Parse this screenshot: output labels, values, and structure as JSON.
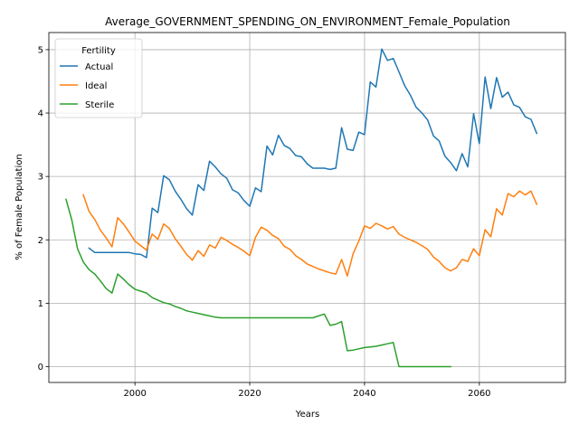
{
  "chart_data": {
    "type": "line",
    "title": "Average_GOVERNMENT_SPENDING_ON_ENVIRONMENT_Female_Population",
    "xlabel": "Years",
    "ylabel": "% of Female Population",
    "xlim": [
      1985,
      2075
    ],
    "ylim": [
      -0.25,
      5.27
    ],
    "xticks": [
      2000,
      2020,
      2040,
      2060
    ],
    "yticks": [
      0,
      1,
      2,
      3,
      4,
      5
    ],
    "grid": true,
    "legend": {
      "title": "Fertility",
      "placement": "upper-left"
    },
    "series": [
      {
        "name": "Actual",
        "color": "#1f77b4",
        "x": [
          1992,
          1993,
          1994,
          1995,
          1996,
          1997,
          1998,
          1999,
          2000,
          2001,
          2002,
          2003,
          2004,
          2005,
          2006,
          2007,
          2008,
          2009,
          2010,
          2011,
          2012,
          2013,
          2014,
          2015,
          2016,
          2017,
          2018,
          2019,
          2020,
          2021,
          2022,
          2023,
          2024,
          2025,
          2026,
          2027,
          2028,
          2029,
          2030,
          2031,
          2032,
          2033,
          2034,
          2035,
          2036,
          2037,
          2038,
          2039,
          2040,
          2041,
          2042,
          2043,
          2044,
          2045,
          2046,
          2047,
          2048,
          2049,
          2050,
          2051,
          2052,
          2053,
          2054,
          2055,
          2056,
          2057,
          2058,
          2059,
          2060,
          2061,
          2062,
          2063,
          2064,
          2065,
          2066,
          2067,
          2068,
          2069,
          2070
        ],
        "y": [
          1.87,
          1.8,
          1.8,
          1.8,
          1.8,
          1.8,
          1.8,
          1.8,
          1.78,
          1.77,
          1.72,
          2.5,
          2.43,
          3.01,
          2.95,
          2.77,
          2.64,
          2.49,
          2.39,
          2.87,
          2.78,
          3.24,
          3.15,
          3.04,
          2.97,
          2.79,
          2.74,
          2.62,
          2.53,
          2.82,
          2.76,
          3.48,
          3.34,
          3.65,
          3.49,
          3.44,
          3.33,
          3.31,
          3.2,
          3.13,
          3.13,
          3.13,
          3.11,
          3.13,
          3.77,
          3.43,
          3.41,
          3.7,
          3.66,
          4.49,
          4.41,
          5.01,
          4.83,
          4.86,
          4.65,
          4.43,
          4.28,
          4.09,
          4.0,
          3.89,
          3.64,
          3.56,
          3.32,
          3.22,
          3.09,
          3.36,
          3.15,
          3.99,
          3.52,
          4.57,
          4.07,
          4.56,
          4.25,
          4.33,
          4.13,
          4.09,
          3.94,
          3.9,
          3.68
        ]
      },
      {
        "name": "Ideal",
        "color": "#ff7f0e",
        "x": [
          1991,
          1992,
          1993,
          1994,
          1995,
          1996,
          1997,
          1998,
          1999,
          2000,
          2001,
          2002,
          2003,
          2004,
          2005,
          2006,
          2007,
          2008,
          2009,
          2010,
          2011,
          2012,
          2013,
          2014,
          2015,
          2016,
          2017,
          2018,
          2019,
          2020,
          2021,
          2022,
          2023,
          2024,
          2025,
          2026,
          2027,
          2028,
          2029,
          2030,
          2031,
          2032,
          2033,
          2034,
          2035,
          2036,
          2037,
          2038,
          2039,
          2040,
          2041,
          2042,
          2043,
          2044,
          2045,
          2046,
          2047,
          2048,
          2049,
          2050,
          2051,
          2052,
          2053,
          2054,
          2055,
          2056,
          2057,
          2058,
          2059,
          2060,
          2061,
          2062,
          2063,
          2064,
          2065,
          2066,
          2067,
          2068,
          2069,
          2070
        ],
        "y": [
          2.71,
          2.45,
          2.32,
          2.15,
          2.03,
          1.89,
          2.35,
          2.25,
          2.12,
          1.98,
          1.91,
          1.84,
          2.09,
          2.01,
          2.25,
          2.18,
          2.02,
          1.9,
          1.77,
          1.68,
          1.83,
          1.74,
          1.92,
          1.87,
          2.04,
          1.99,
          1.93,
          1.88,
          1.82,
          1.75,
          2.04,
          2.2,
          2.15,
          2.07,
          2.02,
          1.9,
          1.85,
          1.75,
          1.69,
          1.62,
          1.58,
          1.54,
          1.51,
          1.48,
          1.46,
          1.69,
          1.43,
          1.78,
          1.98,
          2.22,
          2.18,
          2.26,
          2.22,
          2.17,
          2.21,
          2.09,
          2.04,
          2.0,
          1.96,
          1.91,
          1.85,
          1.73,
          1.66,
          1.56,
          1.51,
          1.56,
          1.69,
          1.66,
          1.86,
          1.75,
          2.16,
          2.05,
          2.49,
          2.39,
          2.73,
          2.68,
          2.77,
          2.71,
          2.77,
          2.56
        ]
      },
      {
        "name": "Sterile",
        "color": "#2ca02c",
        "x": [
          1988,
          1989,
          1990,
          1991,
          1992,
          1993,
          1994,
          1995,
          1996,
          1997,
          1998,
          1999,
          2000,
          2001,
          2002,
          2003,
          2004,
          2005,
          2006,
          2007,
          2008,
          2009,
          2010,
          2011,
          2012,
          2013,
          2014,
          2015,
          2016,
          2017,
          2018,
          2019,
          2020,
          2021,
          2022,
          2023,
          2024,
          2025,
          2026,
          2027,
          2028,
          2029,
          2030,
          2031,
          2032,
          2033,
          2034,
          2035,
          2036,
          2037,
          2038,
          2039,
          2040,
          2041,
          2042,
          2043,
          2044,
          2045,
          2046,
          2047,
          2048,
          2049,
          2050,
          2051,
          2052,
          2053,
          2054,
          2055
        ],
        "y": [
          2.64,
          2.31,
          1.86,
          1.65,
          1.53,
          1.46,
          1.35,
          1.23,
          1.16,
          1.46,
          1.38,
          1.29,
          1.22,
          1.19,
          1.16,
          1.09,
          1.05,
          1.01,
          0.99,
          0.95,
          0.92,
          0.88,
          0.86,
          0.84,
          0.82,
          0.8,
          0.78,
          0.77,
          0.77,
          0.77,
          0.77,
          0.77,
          0.77,
          0.77,
          0.77,
          0.77,
          0.77,
          0.77,
          0.77,
          0.77,
          0.77,
          0.77,
          0.77,
          0.77,
          0.8,
          0.83,
          0.65,
          0.67,
          0.71,
          0.25,
          0.26,
          0.28,
          0.3,
          0.31,
          0.32,
          0.34,
          0.36,
          0.38,
          0.0,
          0.0,
          0.0,
          0.0,
          0.0,
          0.0,
          0.0,
          0.0,
          0.0,
          0.0
        ]
      }
    ]
  }
}
